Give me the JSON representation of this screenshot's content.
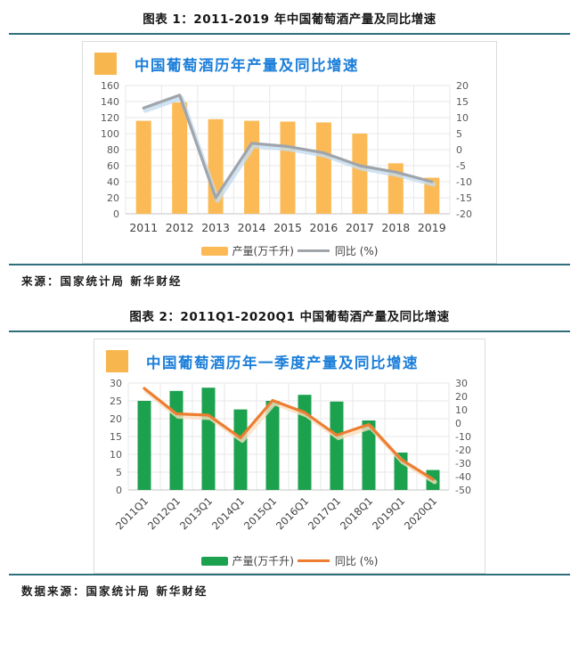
{
  "page": {
    "figure1": {
      "caption": "图表 1：2011-2019 年中国葡萄酒产量及同比增速",
      "source": "来源：国家统计局 新华财经"
    },
    "figure2": {
      "caption": "图表 2：2011Q1-2020Q1 中国葡萄酒产量及同比增速",
      "source": "数据来源：国家统计局 新华财经"
    },
    "colors": {
      "rule_teal": "#2F6F7B",
      "card_border": "#DCDCDC",
      "chart_title_blue": "#1B7ED9",
      "header_square_orange": "#F7B64E",
      "grid": "#E7E7E7",
      "axis_text": "#595959",
      "x_label_text": "#404040"
    }
  },
  "chart_data": [
    {
      "type": "bar",
      "subtype": "bar+line dual-axis combo",
      "title": "中国葡萄酒历年产量及同比增速",
      "categories": [
        "2011",
        "2012",
        "2013",
        "2014",
        "2015",
        "2016",
        "2017",
        "2018",
        "2019"
      ],
      "series": [
        {
          "name": "产量(万千升)",
          "type": "bar",
          "axis": "left",
          "color": "#FBBA55",
          "values": [
            116,
            139,
            118,
            116,
            115,
            114,
            100,
            63,
            45
          ]
        },
        {
          "name": "同比 (%)",
          "type": "line",
          "axis": "right",
          "color": "#9FA5AB",
          "shadow_color": "#C4DCF0",
          "values": [
            13,
            17,
            -15,
            2,
            1,
            -1,
            -5,
            -7,
            -10
          ]
        }
      ],
      "left_axis": {
        "min": 0,
        "max": 160,
        "step": 20
      },
      "right_axis": {
        "min": -20,
        "max": 20,
        "step": 5
      },
      "grid": true,
      "legend_position": "bottom",
      "x_label_rotation": 0
    },
    {
      "type": "bar",
      "subtype": "bar+line dual-axis combo",
      "title": "中国葡萄酒历年一季度产量及同比增速",
      "categories": [
        "2011Q1",
        "2012Q1",
        "2013Q1",
        "2014Q1",
        "2015Q1",
        "2016Q1",
        "2017Q1",
        "2018Q1",
        "2019Q1",
        "2020Q1"
      ],
      "series": [
        {
          "name": "产量(万千升)",
          "type": "bar",
          "axis": "left",
          "color": "#1CA24E",
          "values": [
            25,
            27.8,
            28.7,
            22.6,
            25,
            26.7,
            24.8,
            19.5,
            10.5,
            5.6
          ]
        },
        {
          "name": "同比 (%)",
          "type": "line",
          "axis": "right",
          "color": "#ED7D31",
          "shadow_color": "#F9DFC0",
          "values": [
            26,
            7,
            6,
            -11,
            17,
            8,
            -9,
            -1,
            -27,
            -42
          ]
        }
      ],
      "left_axis": {
        "min": 0,
        "max": 30,
        "step": 5
      },
      "right_axis": {
        "min": -50,
        "max": 30,
        "step": 10
      },
      "grid": true,
      "legend_position": "bottom",
      "x_label_rotation": 45
    }
  ]
}
